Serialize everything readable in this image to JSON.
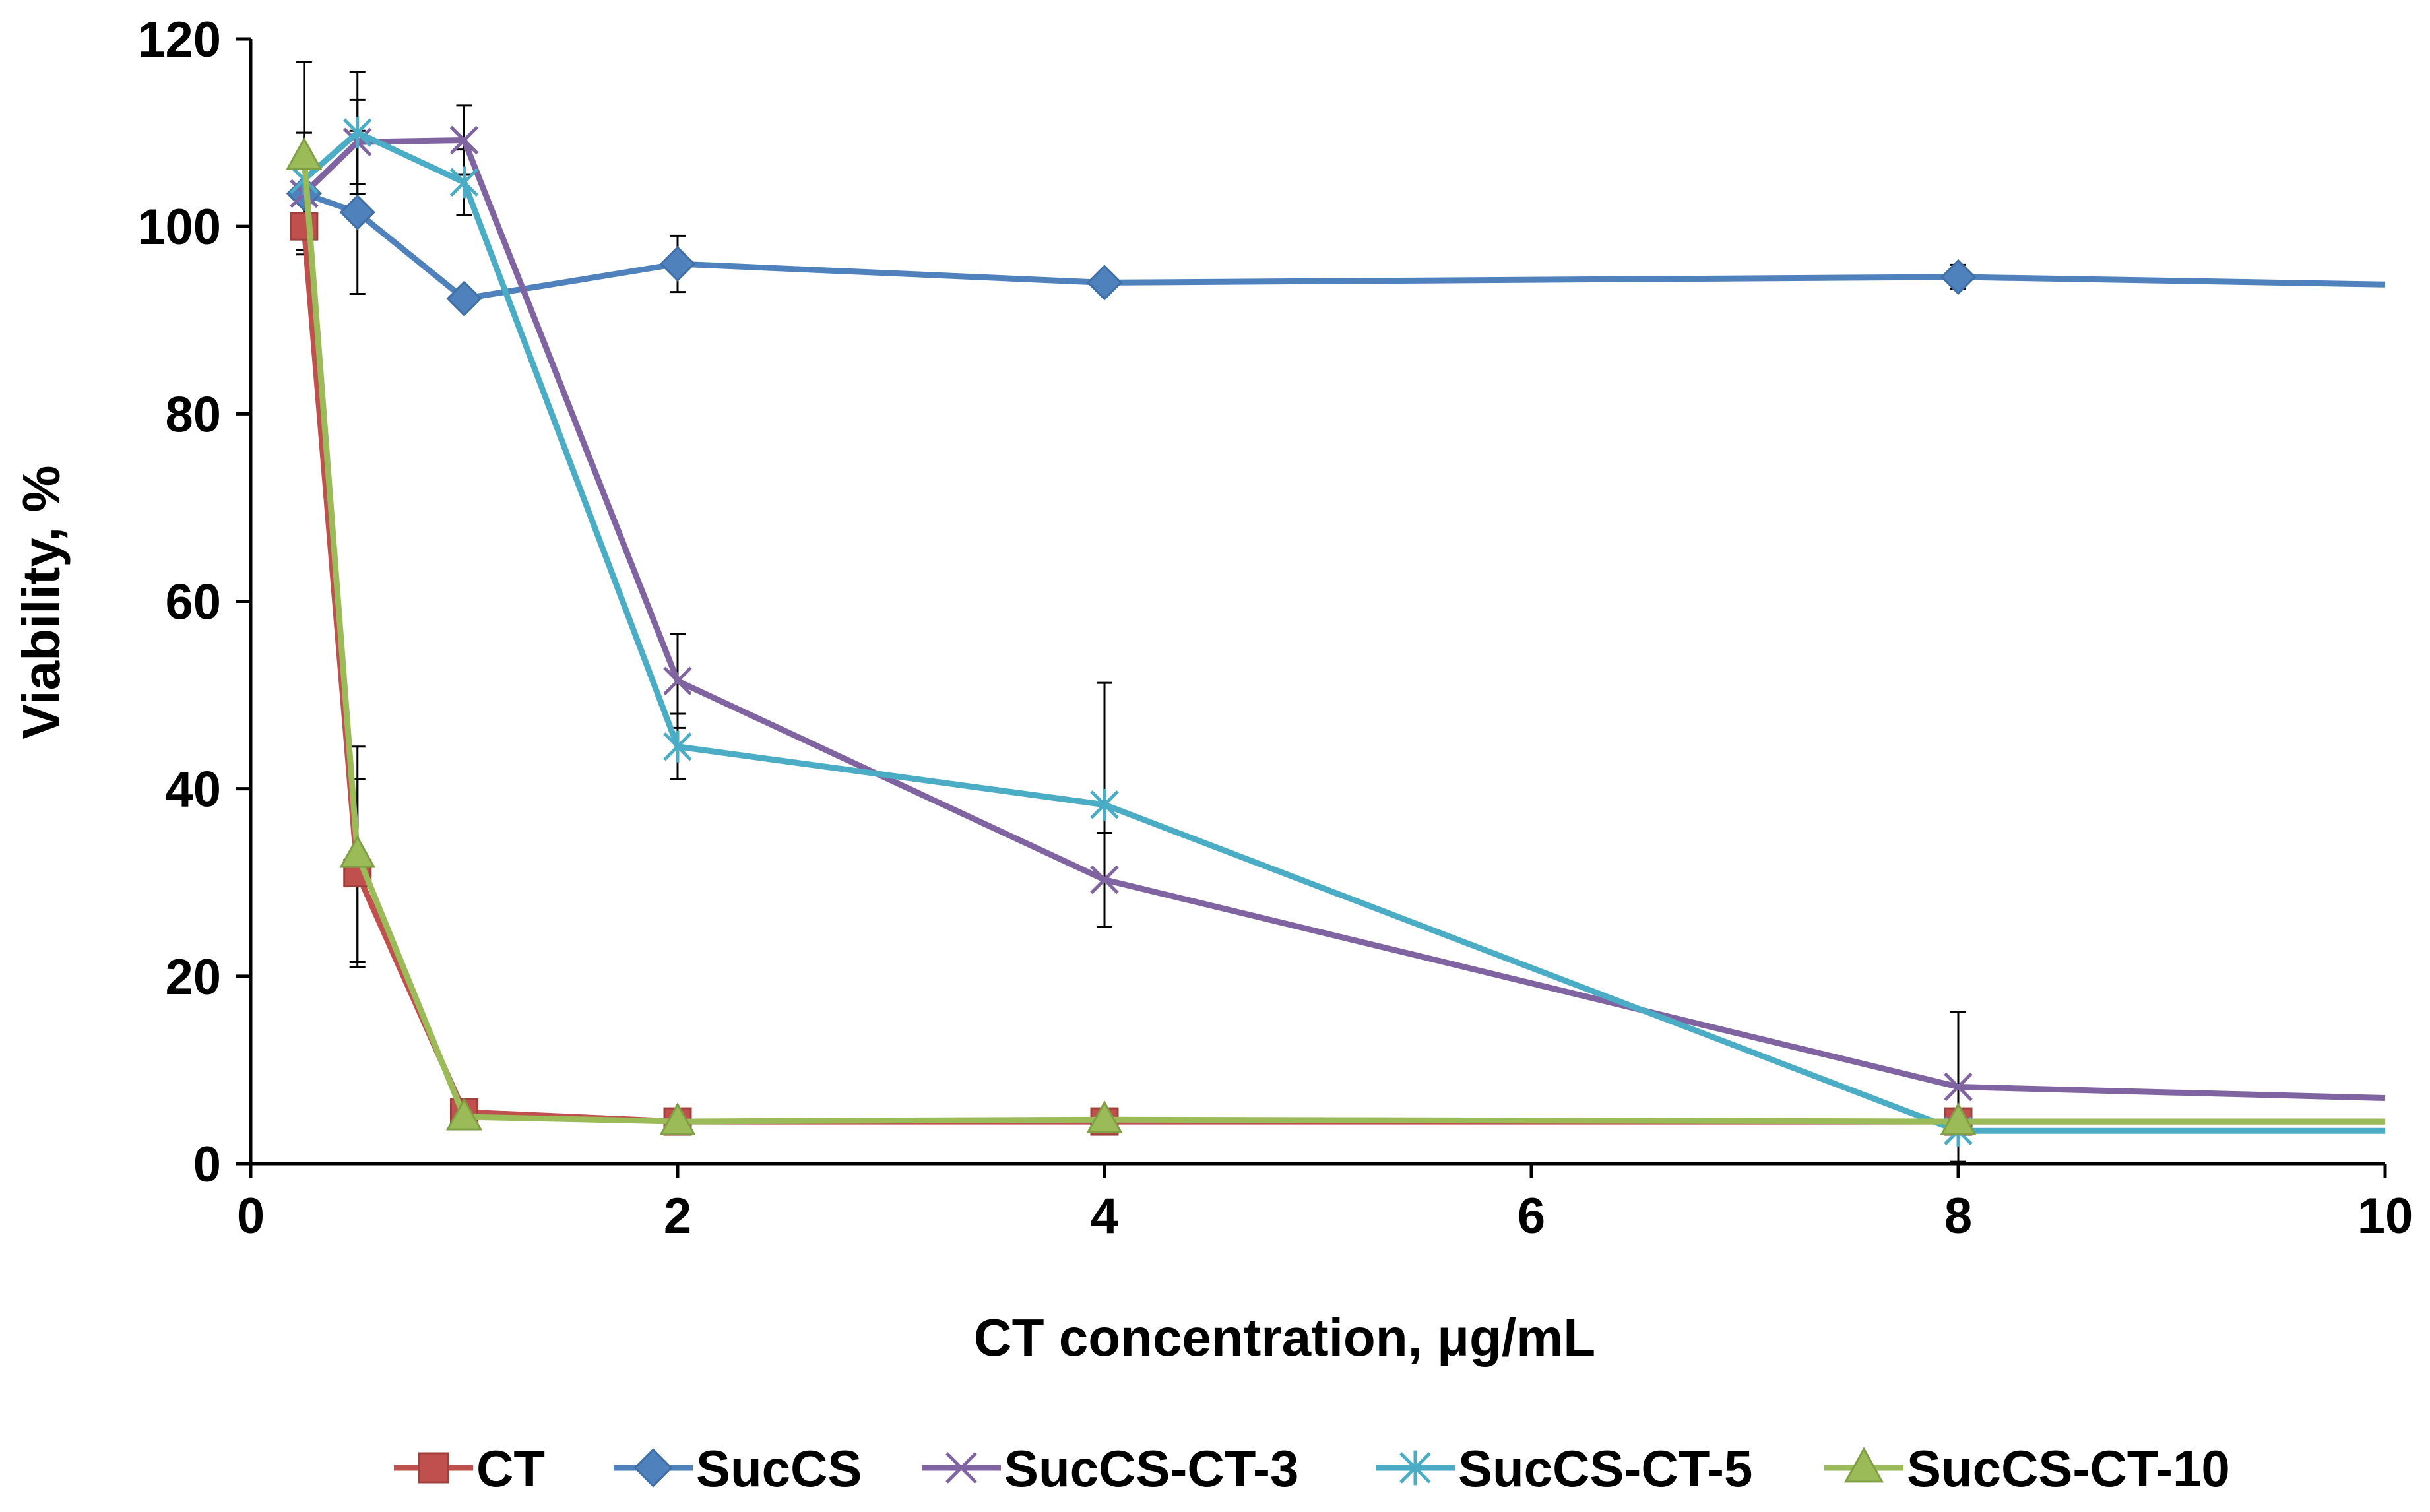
{
  "chart_data": {
    "type": "line",
    "title": "",
    "xlabel": "CT concentration, μg/mL",
    "ylabel": "Viability, %",
    "xlim": [
      0,
      10
    ],
    "ylim": [
      0,
      120
    ],
    "x_ticks": [
      "0",
      "2",
      "4",
      "6",
      "8",
      "10"
    ],
    "y_ticks": [
      "0",
      "20",
      "40",
      "60",
      "80",
      "100",
      "120"
    ],
    "grid": false,
    "legend_position": "bottom",
    "series": [
      {
        "name": "CT",
        "color": "#C0504D",
        "marker": "square",
        "x": [
          0.25,
          0.5,
          1,
          2,
          4,
          8,
          10
        ],
        "values": [
          100,
          31,
          5.5,
          4.5,
          4.5,
          4.5,
          4.5
        ],
        "errors": [
          0,
          10,
          0,
          0,
          0,
          0,
          0
        ]
      },
      {
        "name": "SucCS",
        "color": "#4F81BD",
        "marker": "diamond",
        "x": [
          0.25,
          0.5,
          1,
          2,
          4,
          8,
          10
        ],
        "values": [
          103.5,
          101.5,
          92.3,
          96,
          94,
          94.6,
          93.8
        ],
        "errors": [
          0,
          8.7,
          0,
          3,
          1,
          1.3,
          0
        ]
      },
      {
        "name": "SucCS-CT-3",
        "color": "#8064A2",
        "marker": "x",
        "x": [
          0.25,
          0.5,
          1,
          2,
          4,
          8,
          10
        ],
        "values": [
          103.5,
          109,
          109.2,
          51.5,
          30.3,
          8.2,
          7
        ],
        "errors": [
          6.5,
          4.5,
          3.7,
          5,
          5,
          8,
          0
        ]
      },
      {
        "name": "SucCS-CT-5",
        "color": "#4BACC6",
        "marker": "star",
        "x": [
          0.25,
          0.5,
          1,
          2,
          4,
          8,
          10
        ],
        "values": [
          105,
          110,
          104.7,
          44.5,
          38.3,
          3.5,
          3.5
        ],
        "errors": [
          5,
          6.5,
          3.5,
          3.5,
          13,
          0,
          0
        ]
      },
      {
        "name": "SucCS-CT-10",
        "color": "#9BBB59",
        "marker": "triangle",
        "x": [
          0.25,
          0.5,
          1,
          2,
          4,
          8,
          10
        ],
        "values": [
          107.5,
          33,
          5,
          4.5,
          4.7,
          4.5,
          4.5
        ],
        "errors": [
          10,
          11.5,
          0,
          0,
          0,
          0,
          0
        ]
      }
    ]
  }
}
